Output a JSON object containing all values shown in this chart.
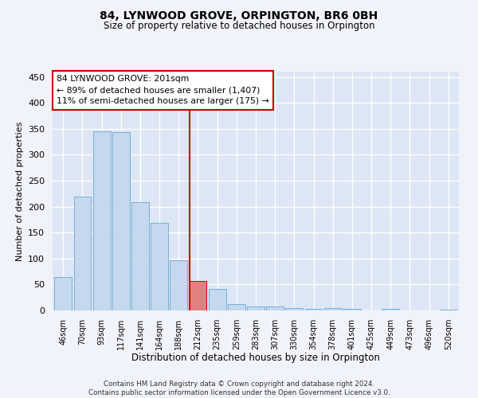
{
  "title": "84, LYNWOOD GROVE, ORPINGTON, BR6 0BH",
  "subtitle": "Size of property relative to detached houses in Orpington",
  "xlabel": "Distribution of detached houses by size in Orpington",
  "ylabel": "Number of detached properties",
  "bar_labels": [
    "46sqm",
    "70sqm",
    "93sqm",
    "117sqm",
    "141sqm",
    "164sqm",
    "188sqm",
    "212sqm",
    "235sqm",
    "259sqm",
    "283sqm",
    "307sqm",
    "330sqm",
    "354sqm",
    "378sqm",
    "401sqm",
    "425sqm",
    "449sqm",
    "473sqm",
    "496sqm",
    "520sqm"
  ],
  "bar_values": [
    65,
    220,
    345,
    344,
    208,
    168,
    97,
    57,
    42,
    13,
    8,
    7,
    5,
    3,
    5,
    3,
    0,
    3,
    0,
    0,
    2
  ],
  "bar_color": "#c5d8ee",
  "bar_edge_color": "#7aaed4",
  "highlight_bar_index": 7,
  "highlight_bar_color": "#e08080",
  "highlight_bar_edge_color": "#cc0000",
  "vline_color": "#cc0000",
  "annotation_text": "84 LYNWOOD GROVE: 201sqm\n← 89% of detached houses are smaller (1,407)\n11% of semi-detached houses are larger (175) →",
  "annotation_box_color": "#ffffff",
  "annotation_box_edge_color": "#cc0000",
  "ylim": [
    0,
    460
  ],
  "yticks": [
    0,
    50,
    100,
    150,
    200,
    250,
    300,
    350,
    400,
    450
  ],
  "fig_background": "#f0f4fa",
  "plot_background": "#dce6f5",
  "grid_color": "#ffffff",
  "footer_line1": "Contains HM Land Registry data © Crown copyright and database right 2024.",
  "footer_line2": "Contains public sector information licensed under the Open Government Licence v3.0."
}
